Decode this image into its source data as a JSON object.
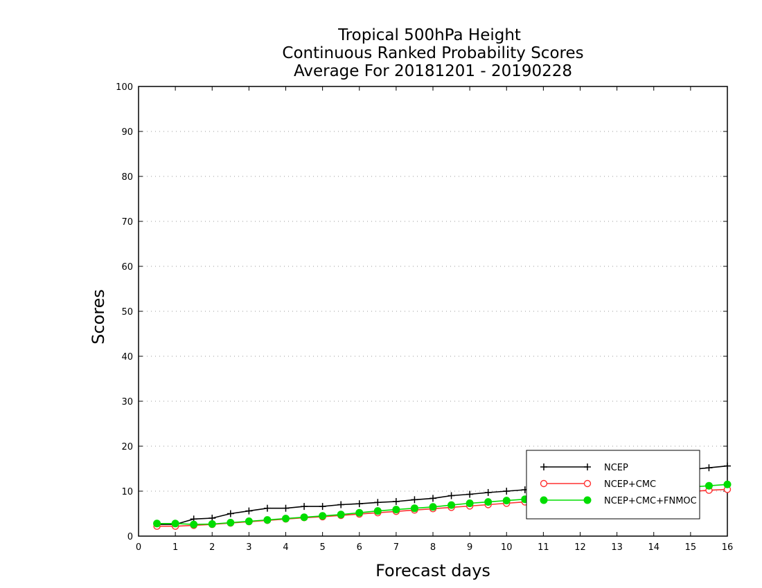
{
  "chart_data": {
    "type": "line",
    "title": [
      "Tropical 500hPa Height",
      "Continuous Ranked Probability Scores",
      "Average For 20181201 - 20190228"
    ],
    "xlabel": "Forecast days",
    "ylabel": "Scores",
    "xlim": [
      0,
      16
    ],
    "ylim": [
      0,
      100
    ],
    "xticks": [
      "0",
      "1",
      "2",
      "3",
      "4",
      "5",
      "6",
      "7",
      "8",
      "9",
      "10",
      "11",
      "12",
      "13",
      "14",
      "15",
      "16"
    ],
    "yticks": [
      "0",
      "10",
      "20",
      "30",
      "40",
      "50",
      "60",
      "70",
      "80",
      "90",
      "100"
    ],
    "grid": "horizontal dotted",
    "legend_position": "bottom-right",
    "x": [
      0.5,
      1,
      1.5,
      2,
      2.5,
      3,
      3.5,
      4,
      4.5,
      5,
      5.5,
      6,
      6.5,
      7,
      7.5,
      8,
      8.5,
      9,
      9.5,
      10,
      10.5,
      11,
      11.5,
      12,
      12.5,
      13,
      13.5,
      14,
      14.5,
      15,
      15.5,
      16
    ],
    "series": [
      {
        "name": "NCEP",
        "color": "#000000",
        "marker": "plus",
        "values": [
          2.6,
          2.6,
          3.8,
          4.0,
          5.0,
          5.6,
          6.2,
          6.2,
          6.6,
          6.6,
          7.0,
          7.2,
          7.5,
          7.7,
          8.1,
          8.4,
          9.0,
          9.3,
          9.7,
          10.0,
          10.3,
          11.0,
          11.5,
          12.0,
          12.5,
          13.0,
          13.5,
          14.0,
          14.4,
          14.8,
          15.2,
          15.6
        ]
      },
      {
        "name": "NCEP+CMC",
        "color": "#ff3030",
        "marker": "open-circle",
        "values": [
          2.2,
          2.2,
          2.4,
          2.6,
          2.9,
          3.2,
          3.5,
          3.8,
          4.1,
          4.3,
          4.6,
          4.9,
          5.2,
          5.5,
          5.8,
          6.1,
          6.4,
          6.7,
          7.0,
          7.3,
          7.6,
          7.8,
          8.1,
          8.4,
          8.7,
          9.0,
          9.2,
          9.4,
          9.7,
          9.9,
          10.2,
          10.4
        ]
      },
      {
        "name": "NCEP+CMC+FNMOC",
        "color": "#00dd00",
        "marker": "filled-circle",
        "values": [
          2.8,
          2.8,
          2.6,
          2.7,
          3.0,
          3.3,
          3.6,
          3.9,
          4.2,
          4.5,
          4.8,
          5.2,
          5.6,
          5.9,
          6.2,
          6.5,
          6.9,
          7.3,
          7.6,
          7.9,
          8.2,
          8.5,
          8.8,
          9.1,
          9.4,
          9.7,
          10.0,
          10.3,
          10.6,
          10.9,
          11.2,
          11.5
        ]
      }
    ]
  }
}
